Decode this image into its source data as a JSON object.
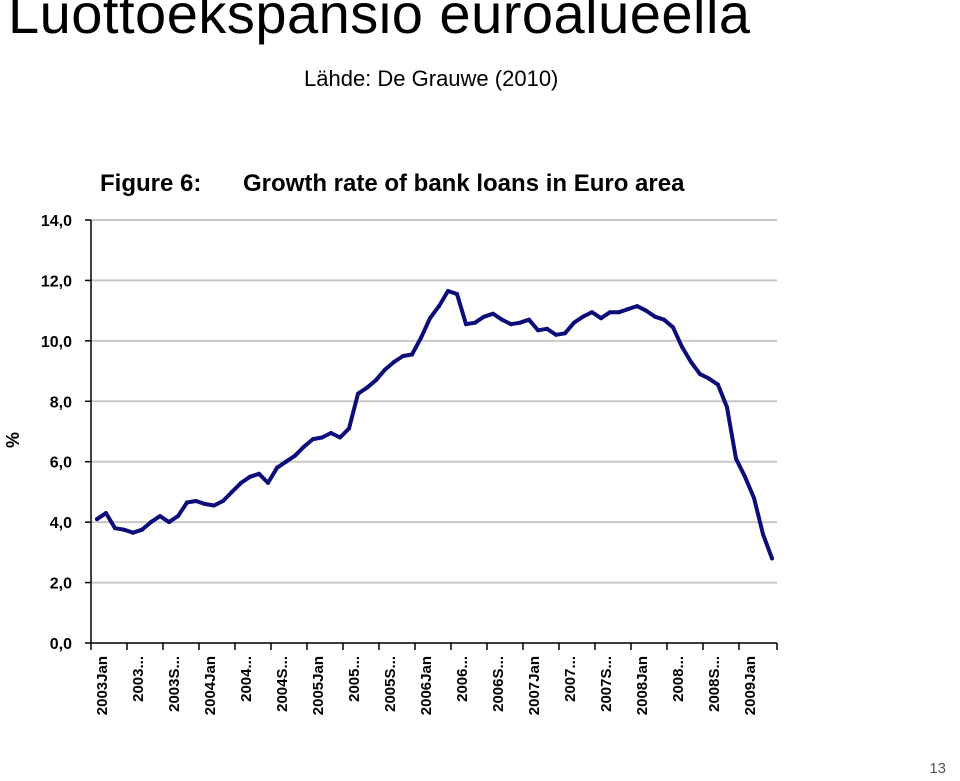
{
  "slide": {
    "title": "Luottoekspansio euroalueella",
    "subtitle": "Lähde: De Grauwe (2010)",
    "page_number": "13"
  },
  "colors": {
    "series_line": "#0d0d7a",
    "gridline": "#c8c8c8",
    "axis": "#000000"
  },
  "chart_data": {
    "type": "line",
    "figure_label": "Figure 6:",
    "title": "Growth rate of bank loans in Euro area",
    "ylabel": "%",
    "xlabel": "",
    "ylim": [
      0,
      14
    ],
    "grid": true,
    "yticks": [
      "0,0",
      "2,0",
      "4,0",
      "6,0",
      "8,0",
      "10,0",
      "12,0",
      "14,0"
    ],
    "xticks": [
      {
        "label": "2003Jan",
        "index": 0
      },
      {
        "label": "2003...",
        "index": 4
      },
      {
        "label": "2003S...",
        "index": 8
      },
      {
        "label": "2004Jan",
        "index": 12
      },
      {
        "label": "2004...",
        "index": 16
      },
      {
        "label": "2004S...",
        "index": 20
      },
      {
        "label": "2005Jan",
        "index": 24
      },
      {
        "label": "2005...",
        "index": 28
      },
      {
        "label": "2005S...",
        "index": 32
      },
      {
        "label": "2006Jan",
        "index": 36
      },
      {
        "label": "2006...",
        "index": 40
      },
      {
        "label": "2006S...",
        "index": 44
      },
      {
        "label": "2007Jan",
        "index": 48
      },
      {
        "label": "2007...",
        "index": 52
      },
      {
        "label": "2007S...",
        "index": 56
      },
      {
        "label": "2008Jan",
        "index": 60
      },
      {
        "label": "2008...",
        "index": 64
      },
      {
        "label": "2008S...",
        "index": 68
      },
      {
        "label": "2009Jan",
        "index": 72
      }
    ],
    "series": [
      {
        "values": [
          4.1,
          4.3,
          3.8,
          3.75,
          3.65,
          3.75,
          4.0,
          4.2,
          4.0,
          4.2,
          4.65,
          4.7,
          4.6,
          4.55,
          4.7,
          5.0,
          5.3,
          5.5,
          5.6,
          5.3,
          5.8,
          6.0,
          6.2,
          6.5,
          6.75,
          6.8,
          6.95,
          6.8,
          7.1,
          8.25,
          8.45,
          8.7,
          9.05,
          9.3,
          9.5,
          9.55,
          10.1,
          10.75,
          11.15,
          11.65,
          11.55,
          10.55,
          10.6,
          10.8,
          10.9,
          10.7,
          10.55,
          10.6,
          10.7,
          10.35,
          10.4,
          10.2,
          10.25,
          10.6,
          10.8,
          10.95,
          10.75,
          10.95,
          10.95,
          11.05,
          11.15,
          11.0,
          10.8,
          10.7,
          10.45,
          9.8,
          9.3,
          8.9,
          8.75,
          8.55,
          7.8,
          6.1,
          5.5,
          4.8,
          3.6,
          2.8
        ]
      }
    ]
  }
}
